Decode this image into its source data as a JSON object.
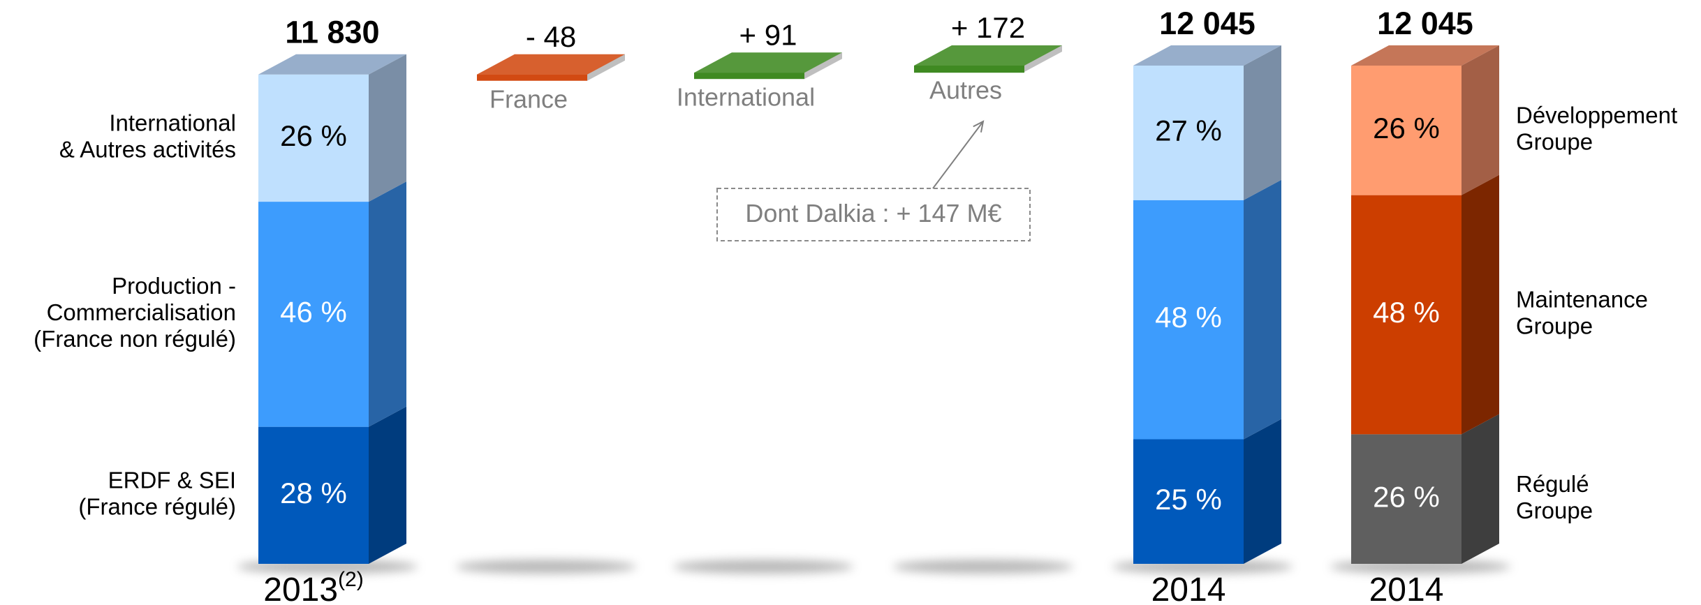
{
  "chart_data": {
    "type": "waterfall",
    "columns": [
      {
        "label": "2013",
        "note": "(2)",
        "total": 11830,
        "total_label": "11 830",
        "labels": "left",
        "segments": [
          {
            "name": [
              "ERDF & SEI",
              "(France régulé)"
            ],
            "value": 28,
            "value_label": "28 %",
            "color": "#0059bb",
            "side_color": "#003c7e",
            "label_color": "#ffffff"
          },
          {
            "name": [
              "Production -",
              "Commercialisation",
              "(France non régulé)"
            ],
            "value": 46,
            "value_label": "46 %",
            "color": "#3d9cfd",
            "side_color": "#2864a6",
            "label_color": "#ffffff"
          },
          {
            "name": [
              "International",
              "& Autres activités"
            ],
            "value": 26,
            "value_label": "26 %",
            "color": "#bfe0fe",
            "side_color": "#7a8ea6",
            "top_color": "#97aecb",
            "label_color": "#000000"
          }
        ]
      },
      {
        "label": "2014",
        "total": 12045,
        "total_label": "12 045",
        "segments": [
          {
            "value": 25,
            "value_label": "25 %",
            "color": "#0059bb",
            "side_color": "#003c7e",
            "label_color": "#ffffff"
          },
          {
            "value": 48,
            "value_label": "48 %",
            "color": "#3d9cfd",
            "side_color": "#2864a6",
            "label_color": "#ffffff"
          },
          {
            "value": 27,
            "value_label": "27 %",
            "color": "#bfe0fe",
            "side_color": "#7a8ea6",
            "top_color": "#97aecb",
            "label_color": "#000000"
          }
        ]
      },
      {
        "label": "2014",
        "total": 12045,
        "total_label": "12 045",
        "labels": "right",
        "segments": [
          {
            "name": [
              "Régulé",
              "Groupe"
            ],
            "value": 26,
            "value_label": "26 %",
            "color": "#5f5f5f",
            "side_color": "#3e3e3e",
            "label_color": "#ffffff"
          },
          {
            "name": [
              "Maintenance",
              "Groupe"
            ],
            "value": 48,
            "value_label": "48 %",
            "color": "#cc3e00",
            "side_color": "#7c2600",
            "label_color": "#ffffff"
          },
          {
            "name": [
              "Développement",
              "Groupe"
            ],
            "value": 26,
            "value_label": "26 %",
            "color": "#ff9c70",
            "side_color": "#a35f46",
            "top_color": "#c57658",
            "label_color": "#000000"
          }
        ]
      }
    ],
    "steps": [
      {
        "name": "France",
        "value": -48,
        "value_label": "- 48",
        "color": "#d24a12"
      },
      {
        "name": "International",
        "value": 91,
        "value_label": "+ 91",
        "color": "#3f8a22"
      },
      {
        "name": "Autres",
        "value": 172,
        "value_label": "+ 172",
        "color": "#3f8a22"
      }
    ],
    "annotation": {
      "text": "Dont Dalkia : + 147 M€"
    }
  }
}
